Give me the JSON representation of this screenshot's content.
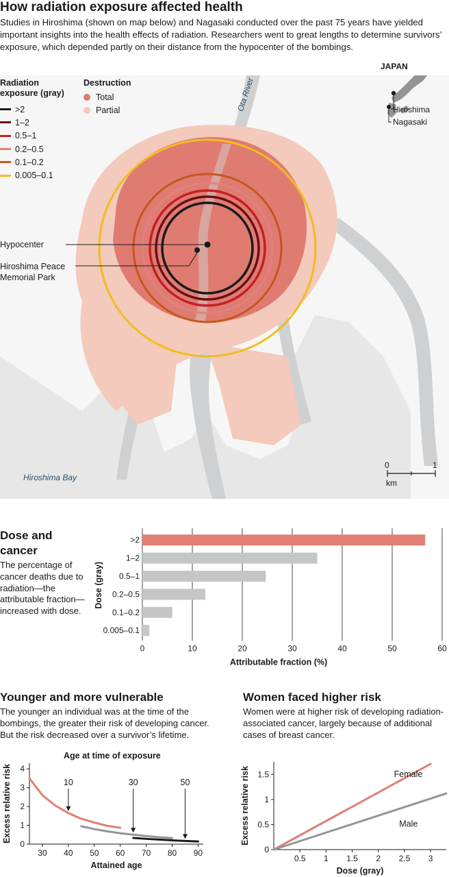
{
  "header": {
    "title": "How radiation exposure affected health",
    "intro": "Studies in Hiroshima (shown on map below) and Nagasaki conducted over the past 75 years have yielded important insights into the health effects of radiation. Researchers went to great lengths to determine survivors’ exposure, which depended partly on their distance from the hypocenter of the bombings."
  },
  "map": {
    "exposure_legend": {
      "title_line1": "Radiation",
      "title_line2": "exposure (gray)",
      "items": [
        {
          "label": ">2",
          "color": "#1a1a1a"
        },
        {
          "label": "1–2",
          "color": "#6b0f14"
        },
        {
          "label": "0.5–1",
          "color": "#c42026"
        },
        {
          "label": "0.2–0.5",
          "color": "#e0827d"
        },
        {
          "label": "0.1–0.2",
          "color": "#c2581b"
        },
        {
          "label": "0.005–0.1",
          "color": "#f1bd1c"
        }
      ]
    },
    "destruction_legend": {
      "title": "Destruction",
      "items": [
        {
          "label": "Total",
          "color": "#e07b72"
        },
        {
          "label": "Partial",
          "color": "#f3cabb"
        }
      ]
    },
    "labels": {
      "river": "Ota River",
      "hypocenter": "Hypocenter",
      "park_line1": "Hiroshima Peace",
      "park_line2": "Memorial Park",
      "bay": "Hiroshima Bay"
    },
    "inset": {
      "country": "JAPAN",
      "city1": "Hiroshima",
      "city2": "Nagasaki"
    },
    "scale": {
      "zero": "0",
      "one": "1",
      "unit": "km"
    }
  },
  "dose_cancer": {
    "title_line1": "Dose and",
    "title_line2": "cancer",
    "description": "The percentage of cancer deaths due to radiation—the attributable fraction—increased with dose."
  },
  "younger": {
    "title": "Younger and more vulnerable",
    "description": "The younger an individual was at the time of the bombings, the greater their risk of developing cancer. But the risk decreased over a survivor’s lifetime."
  },
  "women": {
    "title": "Women faced higher risk",
    "description": "Women were at higher risk of developing radiation-associated cancer, largely because of additional cases of breast cancer."
  },
  "chart_data": [
    {
      "type": "bar",
      "orientation": "horizontal",
      "categories": [
        ">2",
        "1–2",
        "0.5–1",
        "0.2–0.5",
        "0.1–0.2",
        "0.005–0.1"
      ],
      "values": [
        56.6,
        35.0,
        24.7,
        12.6,
        6.0,
        1.4
      ],
      "colors": [
        "#e07f74",
        "#c5c6c8",
        "#c5c6c8",
        "#c5c6c8",
        "#c5c6c8",
        "#c5c6c8"
      ],
      "xlabel": "Attributable fraction (%)",
      "ylabel": "Dose (gray)",
      "xlim": [
        0,
        60
      ],
      "xticks": [
        0,
        10,
        20,
        30,
        40,
        50,
        60
      ],
      "grid": true
    },
    {
      "type": "line",
      "title": "Age at time of exposure",
      "xlabel": "Attained age",
      "ylabel": "Excess relative risk",
      "xlim": [
        25,
        92
      ],
      "ylim": [
        0,
        4.3
      ],
      "xticks": [
        30,
        40,
        50,
        60,
        70,
        80,
        90
      ],
      "yticks": [
        0,
        1,
        2,
        3,
        4
      ],
      "series": [
        {
          "name": "10",
          "color": "#e07f74",
          "x": [
            25,
            30,
            35,
            40,
            45,
            50,
            55,
            60
          ],
          "y": [
            3.5,
            2.6,
            2.05,
            1.65,
            1.35,
            1.15,
            0.97,
            0.87
          ]
        },
        {
          "name": "30",
          "color": "#929497",
          "x": [
            45,
            50,
            55,
            60,
            65,
            70,
            75,
            80
          ],
          "y": [
            0.95,
            0.8,
            0.68,
            0.58,
            0.5,
            0.43,
            0.37,
            0.32
          ]
        },
        {
          "name": "50",
          "color": "#1a1a1a",
          "x": [
            65,
            70,
            75,
            80,
            85,
            90
          ],
          "y": [
            0.33,
            0.28,
            0.24,
            0.2,
            0.17,
            0.14
          ]
        }
      ],
      "annotations": [
        {
          "label": "10",
          "x": 40,
          "y": 1.65
        },
        {
          "label": "30",
          "x": 65,
          "y": 0.5
        },
        {
          "label": "50",
          "x": 85,
          "y": 0.17
        }
      ]
    },
    {
      "type": "line",
      "xlabel": "Dose (gray)",
      "ylabel": "Excess relative risk",
      "xlim": [
        0,
        3.3
      ],
      "ylim": [
        0,
        1.75
      ],
      "xticks": [
        0.5,
        1,
        1.5,
        2,
        2.5,
        3
      ],
      "xtick_labels": [
        "0.5",
        "1",
        "1.5",
        "2",
        "2.5",
        "3"
      ],
      "yticks": [
        0,
        0.5,
        1,
        1.5
      ],
      "ytick_labels": [
        "0",
        "0.5",
        "1",
        "1.5"
      ],
      "series": [
        {
          "name": "Female",
          "color": "#e07f74",
          "x": [
            0,
            3.0
          ],
          "y": [
            0,
            1.71
          ]
        },
        {
          "name": "Male",
          "color": "#929497",
          "x": [
            0,
            3.3
          ],
          "y": [
            0,
            1.12
          ]
        }
      ]
    }
  ]
}
